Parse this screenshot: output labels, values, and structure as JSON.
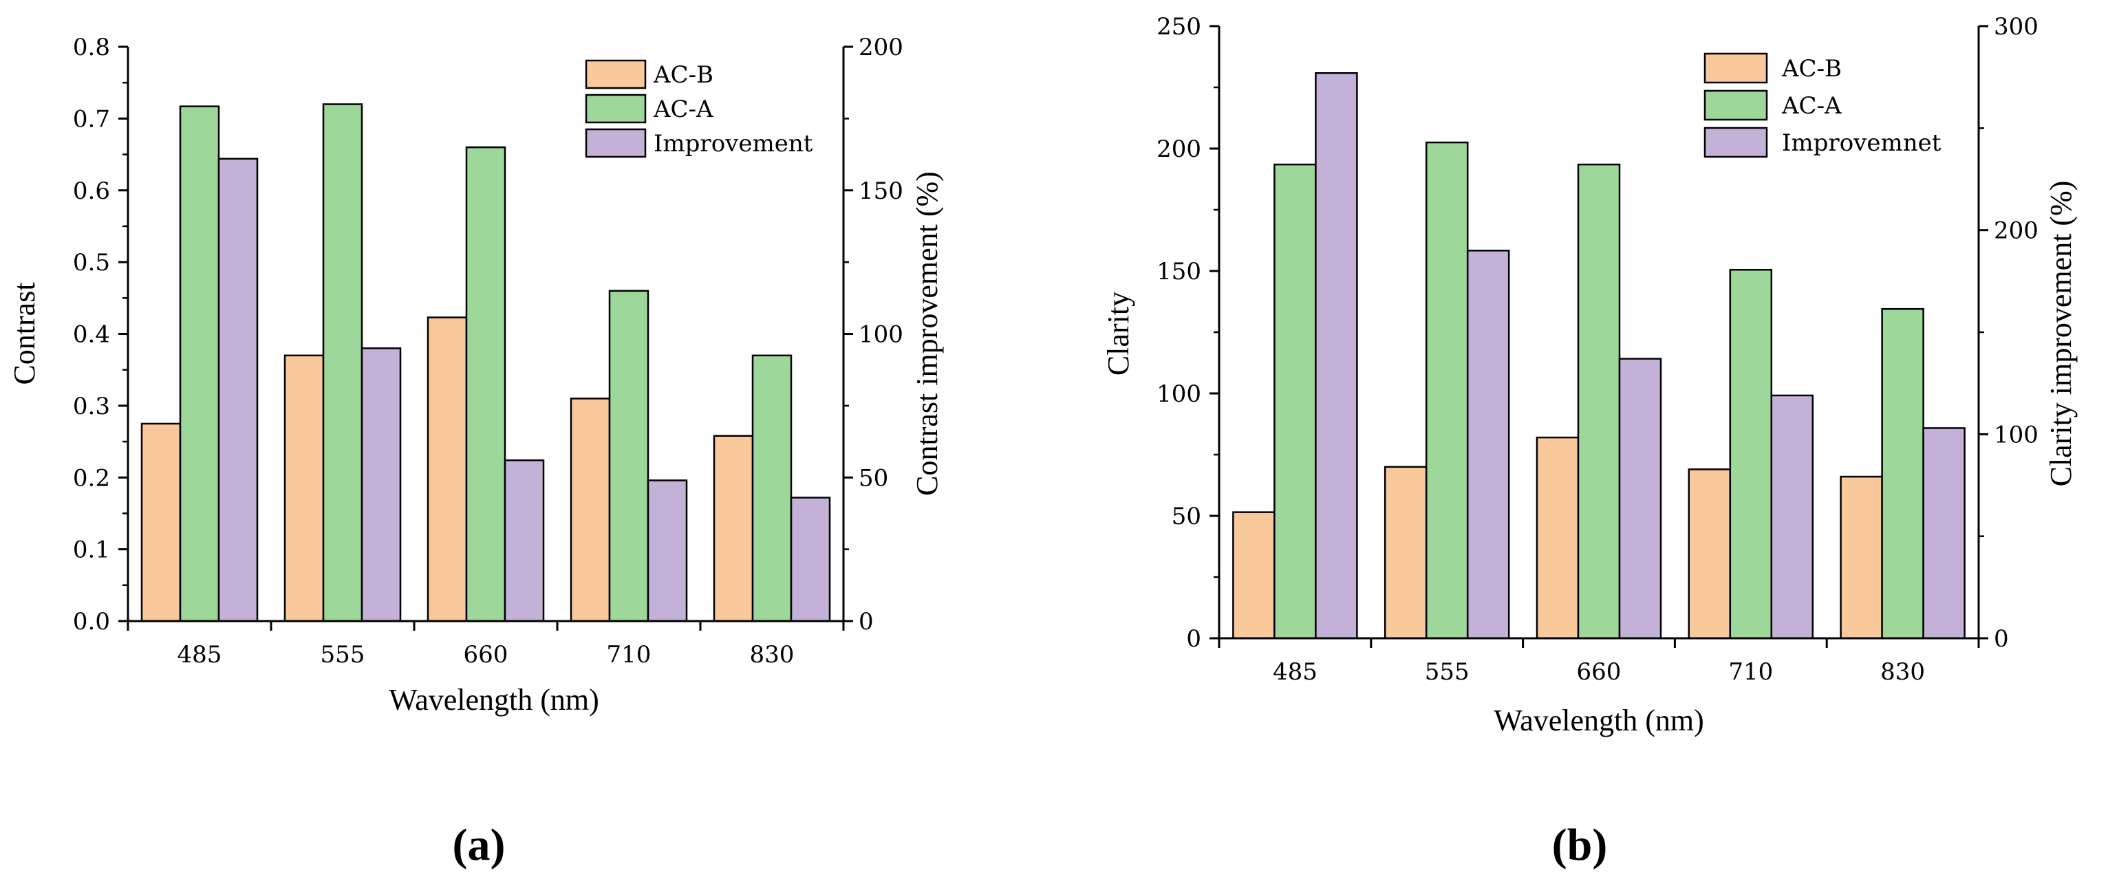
{
  "chart_data": [
    {
      "type": "bar",
      "panel_label": "(a)",
      "categories": [
        "485",
        "555",
        "660",
        "710",
        "830"
      ],
      "xlabel": "Wavelength (nm)",
      "ylabel_left": "Contrast",
      "ylabel_right": "Contrast improvement (%)",
      "ylim_left": [
        0,
        0.8
      ],
      "ylim_right": [
        0,
        200
      ],
      "yticks_left": [
        "0.0",
        "0.1",
        "0.2",
        "0.3",
        "0.4",
        "0.5",
        "0.6",
        "0.7",
        "0.8"
      ],
      "yticks_right": [
        "0",
        "50",
        "100",
        "150",
        "200"
      ],
      "grid": false,
      "legend_position": "top-right",
      "series": [
        {
          "name": "AC-B",
          "axis": "left",
          "color": "#f9c89b",
          "values": [
            0.275,
            0.37,
            0.423,
            0.31,
            0.258
          ]
        },
        {
          "name": "AC-A",
          "axis": "left",
          "color": "#9ed79a",
          "values": [
            0.717,
            0.72,
            0.66,
            0.46,
            0.37
          ]
        },
        {
          "name": "Improvement",
          "axis": "right",
          "color": "#c3b1d8",
          "values": [
            161,
            95,
            56,
            49,
            43
          ]
        }
      ]
    },
    {
      "type": "bar",
      "panel_label": "(b)",
      "categories": [
        "485",
        "555",
        "660",
        "710",
        "830"
      ],
      "xlabel": "Wavelength (nm)",
      "ylabel_left": "Clarity",
      "ylabel_right": "Clarity improvement (%)",
      "ylim_left": [
        0,
        250
      ],
      "ylim_right": [
        0,
        300
      ],
      "yticks_left": [
        "0",
        "50",
        "100",
        "150",
        "200",
        "250"
      ],
      "yticks_right": [
        "0",
        "100",
        "200",
        "300"
      ],
      "grid": false,
      "legend_position": "top-right",
      "series": [
        {
          "name": "AC-B",
          "axis": "left",
          "color": "#f9c89b",
          "values": [
            51.5,
            70,
            82,
            69,
            66
          ]
        },
        {
          "name": "AC-A",
          "axis": "left",
          "color": "#9ed79a",
          "values": [
            193.5,
            202.5,
            193.5,
            150.5,
            134.5
          ]
        },
        {
          "name": "Improvemnet",
          "axis": "right",
          "color": "#c3b1d8",
          "values": [
            277,
            190,
            137,
            119,
            103
          ]
        }
      ]
    }
  ]
}
